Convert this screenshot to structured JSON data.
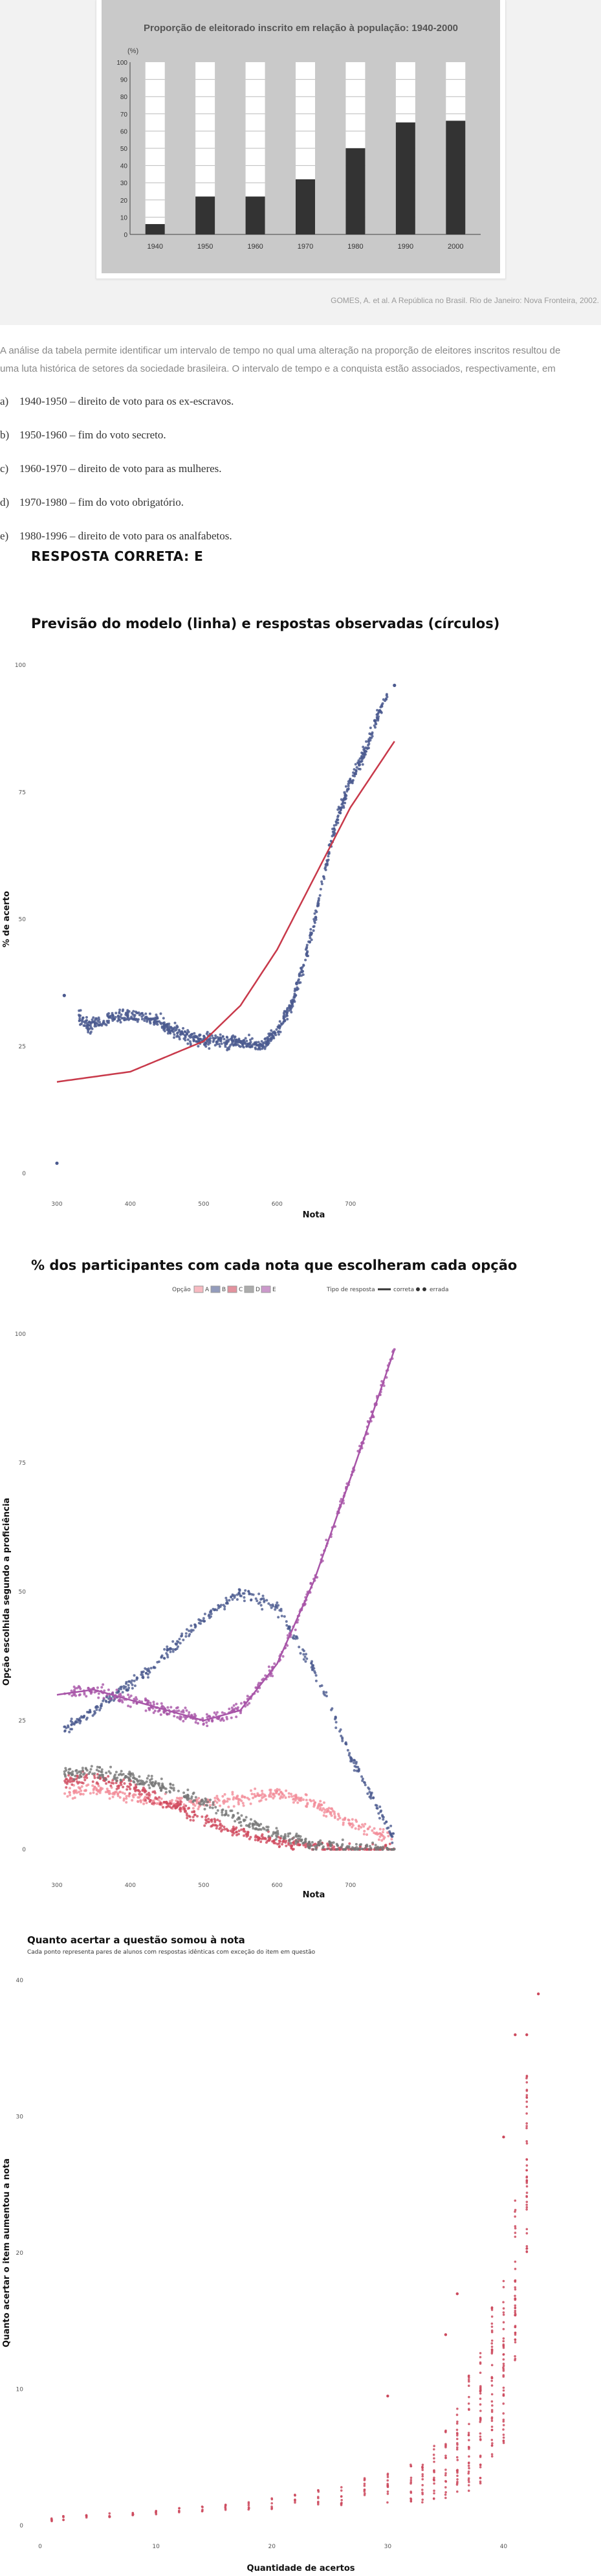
{
  "question": {
    "source": "GOMES, A. et al. A República no Brasil. Rio de Janeiro: Nova Fronteira, 2002.",
    "stem_lines": [
      "A análise da tabela permite identificar um intervalo de tempo no qual uma alteração na proporção de eleitores inscritos resultou de",
      "uma luta histórica de setores da sociedade brasileira. O intervalo de tempo e a conquista estão associados, respectivamente, em"
    ],
    "options": [
      {
        "letter": "a)",
        "text": "1940-1950 – direito de voto para os ex-escravos."
      },
      {
        "letter": "b)",
        "text": "1950-1960 – fim do voto secreto."
      },
      {
        "letter": "c)",
        "text": "1960-1970 – direito de voto para as mulheres."
      },
      {
        "letter": "d)",
        "text": "1970-1980 – fim do voto obrigatório."
      },
      {
        "letter": "e)",
        "text": "1980-1996 – direito de voto para os analfabetos."
      }
    ],
    "answer": "RESPOSTA CORRETA: E"
  },
  "colors": {
    "bar_dark": "#333333",
    "bar_bg": "#ffffff",
    "panel_grey": "#c9c9c9",
    "blue": "#4b5a8f",
    "red_line": "#c8394a",
    "purple": "#a855a8",
    "grey": "#777777",
    "pink": "#f28c98",
    "crimson": "#d04a5e",
    "lightpink": "#f7b3bd",
    "scatter_red": "#cc4a5e"
  },
  "chart_data": [
    {
      "type": "bar",
      "title": "Proporção de eleitorado inscrito em relação à população: 1940-2000",
      "ylabel": "(%)",
      "categories": [
        "1940",
        "1950",
        "1960",
        "1970",
        "1980",
        "1990",
        "2000"
      ],
      "values": [
        6,
        22,
        22,
        32,
        50,
        65,
        66
      ],
      "ylim": [
        0,
        100
      ],
      "yticks": [
        "0",
        "10",
        "20",
        "30",
        "40",
        "50",
        "60",
        "70",
        "80",
        "90",
        "100"
      ],
      "grid": true
    },
    {
      "type": "scatter",
      "title": "Previsão do modelo (linha) e respostas observadas (círculos)",
      "xlabel": "Nota",
      "ylabel": "% de acerto",
      "xlim": [
        300,
        1000
      ],
      "ylim": [
        0,
        100
      ],
      "xticks": [
        "300",
        "400",
        "500",
        "600",
        "700"
      ],
      "yticks": [
        "0",
        "25",
        "50",
        "75",
        "100"
      ],
      "model_curve": {
        "name": "Previsão do modelo",
        "x": [
          300,
          400,
          500,
          550,
          600,
          650,
          700,
          760
        ],
        "y": [
          18,
          20,
          26,
          33,
          44,
          58,
          72,
          85
        ]
      },
      "observed": {
        "name": "Respostas observadas",
        "x": [
          300,
          310,
          340,
          380,
          420,
          460,
          500,
          540,
          580,
          600,
          620,
          640,
          660,
          680,
          700,
          720,
          740,
          760
        ],
        "y": [
          2,
          35,
          29,
          31,
          31,
          28,
          26,
          26,
          25,
          28,
          33,
          43,
          56,
          69,
          77,
          83,
          91,
          96
        ]
      }
    },
    {
      "type": "scatter",
      "title": "% dos participantes com cada nota que escolheram cada opção",
      "xlabel": "Nota",
      "ylabel": "Opção escolhida segundo a proficiência",
      "xlim": [
        300,
        1000
      ],
      "ylim": [
        0,
        100
      ],
      "xticks": [
        "300",
        "400",
        "500",
        "600",
        "700"
      ],
      "yticks": [
        "0",
        "25",
        "50",
        "75",
        "100"
      ],
      "legend": {
        "opcao_label": "Opção",
        "options": [
          "A",
          "B",
          "C",
          "D",
          "E"
        ],
        "tipo_label": "Tipo de resposta",
        "tipos": [
          "correta",
          "errada"
        ]
      },
      "series": [
        {
          "name": "A",
          "x": [
            300,
            350,
            400,
            450,
            500,
            550,
            600,
            650,
            700,
            760
          ],
          "y": [
            10,
            12,
            10,
            9,
            9,
            10,
            11,
            9,
            5,
            2
          ]
        },
        {
          "name": "B",
          "x": [
            300,
            350,
            400,
            450,
            500,
            550,
            600,
            650,
            700,
            760
          ],
          "y": [
            22,
            27,
            32,
            38,
            45,
            50,
            47,
            35,
            18,
            2
          ]
        },
        {
          "name": "C",
          "x": [
            300,
            350,
            400,
            450,
            500,
            550,
            600,
            650,
            700,
            760
          ],
          "y": [
            13,
            14,
            12,
            9,
            6,
            3,
            1.5,
            0.5,
            0,
            0
          ]
        },
        {
          "name": "D",
          "x": [
            300,
            350,
            400,
            450,
            500,
            550,
            600,
            650,
            700,
            760
          ],
          "y": [
            15,
            15,
            14,
            12,
            9,
            6,
            3,
            1,
            0.3,
            0
          ]
        },
        {
          "name": "E",
          "x": [
            300,
            350,
            400,
            450,
            500,
            550,
            600,
            650,
            700,
            760
          ],
          "y": [
            30,
            31,
            29,
            27,
            25,
            27,
            36,
            52,
            72,
            97
          ]
        }
      ]
    },
    {
      "type": "scatter",
      "title": "Quanto acertar a questão somou à nota",
      "subtitle": "Cada ponto representa pares de alunos com respostas idênticas com exceção do item em questão",
      "xlabel": "Quantidade de acertos",
      "ylabel": "Quanto acertar o item aumentou a nota",
      "xlim": [
        0,
        45
      ],
      "ylim": [
        0,
        40
      ],
      "xticks": [
        "0",
        "10",
        "20",
        "30",
        "40"
      ],
      "yticks": [
        "0",
        "10",
        "20",
        "30",
        "40"
      ],
      "x": [
        1,
        2,
        4,
        6,
        8,
        10,
        12,
        14,
        16,
        18,
        20,
        22,
        24,
        26,
        28,
        30,
        32,
        33,
        34,
        35,
        36,
        37,
        38,
        39,
        40,
        41,
        42
      ],
      "ymin": [
        0.3,
        0.4,
        0.5,
        0.6,
        0.7,
        0.8,
        0.9,
        1.0,
        1.0,
        1.1,
        1.2,
        1.3,
        1.4,
        1.5,
        1.6,
        1.5,
        1.6,
        1.7,
        1.8,
        2.0,
        2.0,
        2.5,
        3.0,
        4.0,
        6.0,
        12.0,
        20.0
      ],
      "ymax": [
        0.6,
        0.7,
        0.8,
        0.9,
        1.0,
        1.2,
        1.3,
        1.4,
        1.6,
        1.8,
        2.0,
        2.3,
        2.6,
        3.0,
        3.6,
        4.0,
        4.5,
        5.0,
        6.0,
        7.0,
        9.0,
        11.0,
        13.0,
        16.0,
        18.0,
        24.0,
        33.0
      ],
      "outliers": {
        "x": [
          30,
          35,
          36,
          40,
          41,
          42,
          43
        ],
        "y": [
          9.5,
          14,
          17,
          28.5,
          36,
          36,
          39
        ]
      }
    }
  ]
}
